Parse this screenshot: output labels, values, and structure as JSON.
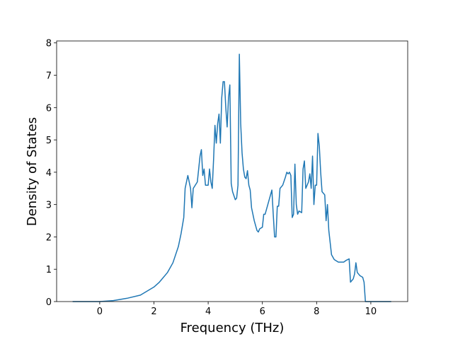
{
  "chart_data": {
    "type": "line",
    "xlabel": "Frequency (THz)",
    "ylabel": "Density of States",
    "xlim": [
      -1.59,
      11.36
    ],
    "ylim": [
      0,
      8.06
    ],
    "xticks": [
      0,
      2,
      4,
      6,
      8,
      10
    ],
    "yticks": [
      0,
      1,
      2,
      3,
      4,
      5,
      6,
      7,
      8
    ],
    "x": [
      -1.0,
      0.0,
      0.5,
      1.0,
      1.5,
      2.0,
      2.2,
      2.5,
      2.7,
      2.9,
      3.0,
      3.1,
      3.15,
      3.25,
      3.35,
      3.4,
      3.45,
      3.6,
      3.7,
      3.75,
      3.8,
      3.85,
      3.9,
      4.0,
      4.05,
      4.1,
      4.15,
      4.2,
      4.25,
      4.3,
      4.35,
      4.4,
      4.45,
      4.5,
      4.55,
      4.6,
      4.65,
      4.7,
      4.75,
      4.8,
      4.85,
      4.9,
      5.0,
      5.05,
      5.1,
      5.15,
      5.2,
      5.25,
      5.3,
      5.35,
      5.4,
      5.45,
      5.5,
      5.55,
      5.6,
      5.7,
      5.8,
      5.85,
      5.9,
      6.0,
      6.05,
      6.1,
      6.2,
      6.3,
      6.35,
      6.4,
      6.45,
      6.5,
      6.55,
      6.6,
      6.65,
      6.75,
      6.85,
      6.9,
      6.95,
      7.0,
      7.05,
      7.1,
      7.15,
      7.2,
      7.25,
      7.3,
      7.35,
      7.45,
      7.5,
      7.55,
      7.6,
      7.7,
      7.75,
      7.8,
      7.85,
      7.9,
      7.95,
      8.0,
      8.05,
      8.1,
      8.15,
      8.2,
      8.3,
      8.35,
      8.4,
      8.45,
      8.55,
      8.65,
      8.8,
      9.0,
      9.1,
      9.2,
      9.25,
      9.35,
      9.4,
      9.45,
      9.5,
      9.6,
      9.7,
      9.75,
      9.8,
      10.0,
      10.75
    ],
    "series": [
      {
        "color": "#1f77b4",
        "values": [
          0,
          0,
          0.03,
          0.1,
          0.2,
          0.45,
          0.6,
          0.9,
          1.2,
          1.7,
          2.1,
          2.6,
          3.5,
          3.9,
          3.5,
          2.9,
          3.5,
          3.7,
          4.5,
          4.7,
          3.9,
          4.1,
          3.6,
          3.6,
          4.1,
          3.7,
          3.5,
          4.4,
          5.45,
          4.9,
          5.5,
          5.8,
          4.9,
          6.3,
          6.8,
          6.8,
          6.0,
          5.4,
          6.3,
          6.7,
          3.65,
          3.4,
          3.15,
          3.2,
          3.6,
          7.65,
          5.5,
          4.6,
          4.1,
          3.85,
          3.8,
          4.05,
          3.6,
          3.45,
          2.9,
          2.5,
          2.2,
          2.15,
          2.25,
          2.3,
          2.7,
          2.7,
          3.0,
          3.3,
          3.45,
          2.7,
          2.0,
          2.0,
          2.95,
          2.95,
          3.5,
          3.6,
          3.85,
          4.0,
          3.95,
          4.0,
          3.9,
          2.6,
          2.7,
          4.25,
          3.0,
          2.7,
          2.8,
          2.75,
          4.1,
          4.35,
          3.5,
          3.7,
          3.95,
          3.5,
          4.5,
          3.0,
          3.6,
          3.6,
          5.2,
          4.8,
          4.0,
          3.4,
          3.3,
          2.5,
          3.0,
          2.2,
          1.45,
          1.3,
          1.22,
          1.22,
          1.28,
          1.32,
          0.6,
          0.7,
          0.85,
          1.2,
          0.9,
          0.8,
          0.75,
          0.6,
          0.0,
          0.0,
          0.0
        ]
      }
    ]
  }
}
